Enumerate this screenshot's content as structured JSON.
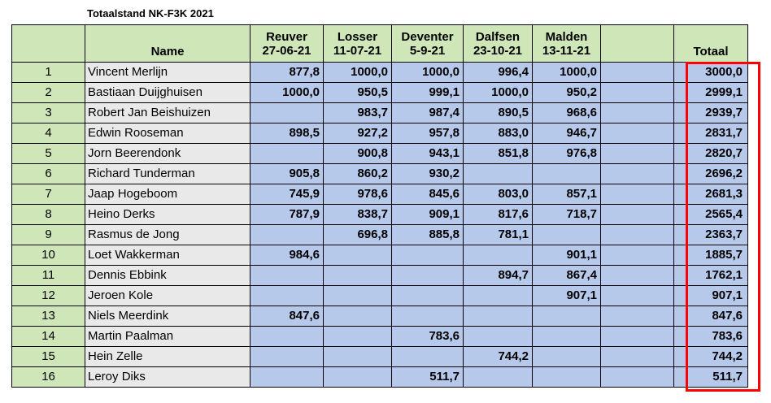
{
  "title": "Totaalstand NK-F3K 2021",
  "header": {
    "rank": "",
    "name": "Name",
    "events": [
      {
        "place": "Reuver",
        "date": "27-06-21"
      },
      {
        "place": "Losser",
        "date": "11-07-21"
      },
      {
        "place": "Deventer",
        "date": "5-9-21"
      },
      {
        "place": "Dalfsen",
        "date": "23-10-21"
      },
      {
        "place": "Malden",
        "date": "13-11-21"
      },
      {
        "place": "",
        "date": ""
      }
    ],
    "total": "Totaal"
  },
  "rows": [
    {
      "rank": "1",
      "name": "Vincent Merlijn",
      "scores": [
        "877,8",
        "1000,0",
        "1000,0",
        "996,4",
        "1000,0",
        ""
      ],
      "total": "3000,0"
    },
    {
      "rank": "2",
      "name": "Bastiaan Duijghuisen",
      "scores": [
        "1000,0",
        "950,5",
        "999,1",
        "1000,0",
        "950,2",
        ""
      ],
      "total": "2999,1"
    },
    {
      "rank": "3",
      "name": "Robert Jan Beishuizen",
      "scores": [
        "",
        "983,7",
        "987,4",
        "890,5",
        "968,6",
        ""
      ],
      "total": "2939,7"
    },
    {
      "rank": "4",
      "name": "Edwin Rooseman",
      "scores": [
        "898,5",
        "927,2",
        "957,8",
        "883,0",
        "946,7",
        ""
      ],
      "total": "2831,7"
    },
    {
      "rank": "5",
      "name": "Jorn Beerendonk",
      "scores": [
        "",
        "900,8",
        "943,1",
        "851,8",
        "976,8",
        ""
      ],
      "total": "2820,7"
    },
    {
      "rank": "6",
      "name": "Richard Tunderman",
      "scores": [
        "905,8",
        "860,2",
        "930,2",
        "",
        "",
        ""
      ],
      "total": "2696,2"
    },
    {
      "rank": "7",
      "name": "Jaap Hogeboom",
      "scores": [
        "745,9",
        "978,6",
        "845,6",
        "803,0",
        "857,1",
        ""
      ],
      "total": "2681,3"
    },
    {
      "rank": "8",
      "name": "Heino Derks",
      "scores": [
        "787,9",
        "838,7",
        "909,1",
        "817,6",
        "718,7",
        ""
      ],
      "total": "2565,4"
    },
    {
      "rank": "9",
      "name": "Rasmus de Jong",
      "scores": [
        "",
        "696,8",
        "885,8",
        "781,1",
        "",
        ""
      ],
      "total": "2363,7"
    },
    {
      "rank": "10",
      "name": "Loet Wakkerman",
      "scores": [
        "984,6",
        "",
        "",
        "",
        "901,1",
        ""
      ],
      "total": "1885,7"
    },
    {
      "rank": "11",
      "name": "Dennis Ebbink",
      "scores": [
        "",
        "",
        "",
        "894,7",
        "867,4",
        ""
      ],
      "total": "1762,1"
    },
    {
      "rank": "12",
      "name": "Jeroen Kole",
      "scores": [
        "",
        "",
        "",
        "",
        "907,1",
        ""
      ],
      "total": "907,1"
    },
    {
      "rank": "13",
      "name": "Niels Meerdink",
      "scores": [
        "847,6",
        "",
        "",
        "",
        "",
        ""
      ],
      "total": "847,6"
    },
    {
      "rank": "14",
      "name": "Martin Paalman",
      "scores": [
        "",
        "",
        "783,6",
        "",
        "",
        ""
      ],
      "total": "783,6"
    },
    {
      "rank": "15",
      "name": "Hein Zelle",
      "scores": [
        "",
        "",
        "",
        "744,2",
        "",
        ""
      ],
      "total": "744,2"
    },
    {
      "rank": "16",
      "name": "Leroy Diks",
      "scores": [
        "",
        "",
        "511,7",
        "",
        "",
        ""
      ],
      "total": "511,7"
    }
  ]
}
